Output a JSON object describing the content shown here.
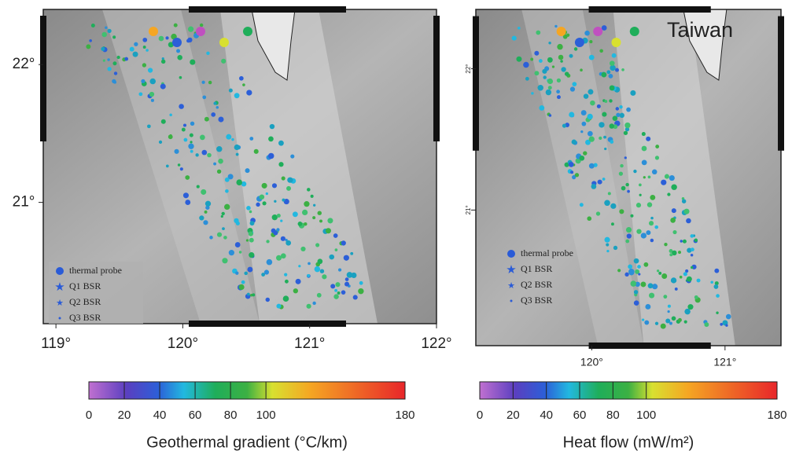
{
  "panels": [
    {
      "xlim": [
        118.9,
        122
      ],
      "ylim": [
        20.12,
        22.4
      ],
      "xticks": [
        {
          "value": 119,
          "label": "119°"
        },
        {
          "value": 120,
          "label": "120°"
        },
        {
          "value": 121,
          "label": "121°"
        },
        {
          "value": 122,
          "label": "122°"
        }
      ],
      "yticks": [
        {
          "value": 21,
          "label": "21°"
        },
        {
          "value": 22,
          "label": "22°"
        }
      ],
      "legend": [
        "thermal probe",
        "Q1 BSR",
        "Q2 BSR",
        "Q3 BSR"
      ]
    },
    {
      "xlim": [
        119.13,
        121.42
      ],
      "ylim": [
        20.04,
        22.42
      ],
      "xticks": [
        {
          "value": 120,
          "label": "120°"
        },
        {
          "value": 121,
          "label": "121°"
        }
      ],
      "yticks": [
        {
          "value": 21,
          "label": "21°"
        },
        {
          "value": 22,
          "label": "22°"
        }
      ],
      "legend": [
        "thermal probe",
        "Q1 BSR",
        "Q2 BSR",
        "Q3 BSR"
      ],
      "annotation": "Taiwan"
    }
  ],
  "colorbars": [
    {
      "title": "Geothermal gradient (°C/km)",
      "ticks": [
        0,
        20,
        40,
        60,
        80,
        100,
        180
      ]
    },
    {
      "title": "Heat flow (mW/m²)",
      "ticks": [
        0,
        20,
        40,
        60,
        80,
        100,
        180
      ]
    }
  ]
}
